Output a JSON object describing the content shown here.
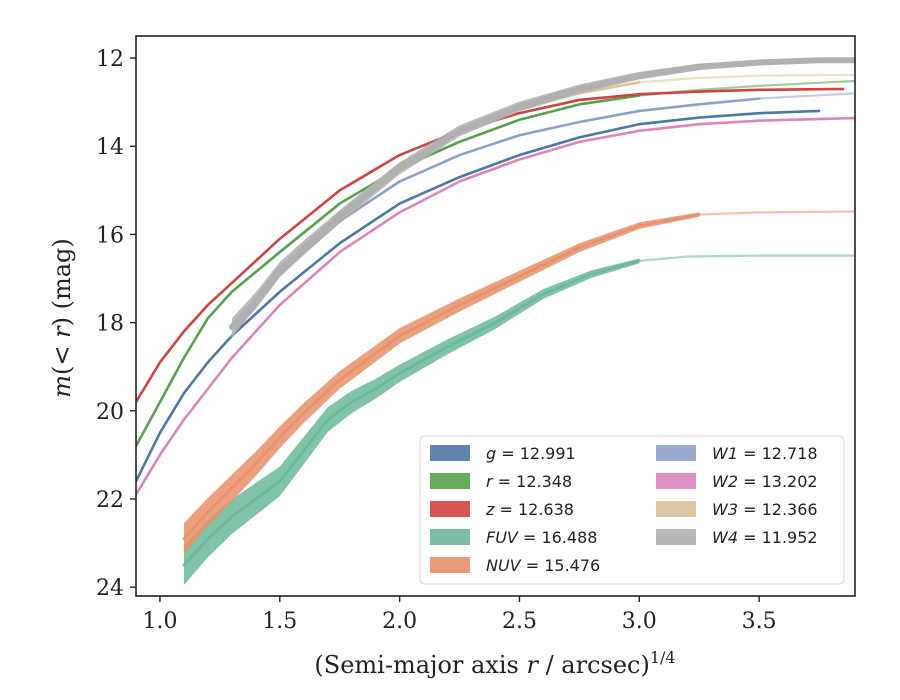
{
  "chart_data": {
    "type": "line",
    "xlabel": "(Semi-major axis r / arcsec)^{1/4}",
    "xlabel_parts": {
      "main": "(Semi-major axis ",
      "var": "r",
      "unit": " / arcsec)",
      "exp": "1/4"
    },
    "ylabel_parts": {
      "m": "m",
      "mid": "(< ",
      "r": "r",
      "end": ") (mag)"
    },
    "xlim": [
      0.9,
      3.9
    ],
    "ylim": [
      24.2,
      11.5
    ],
    "y_inverted": true,
    "xticks": [
      1.0,
      1.5,
      2.0,
      2.5,
      3.0,
      3.5
    ],
    "xtick_labels": [
      "1.0",
      "1.5",
      "2.0",
      "2.5",
      "3.0",
      "3.5"
    ],
    "yticks": [
      12,
      14,
      16,
      18,
      20,
      22,
      24
    ],
    "ytick_labels": [
      "12",
      "14",
      "16",
      "18",
      "20",
      "22",
      "24"
    ],
    "grid": false,
    "legend_position": "lower-right",
    "series": [
      {
        "name": "g",
        "label_value": "= 12.991",
        "color": "#4c78a8",
        "x": [
          0.9,
          1.0,
          1.1,
          1.2,
          1.3,
          1.5,
          1.75,
          2.0,
          2.25,
          2.5,
          2.75,
          3.0,
          3.25,
          3.5,
          3.75
        ],
        "y": [
          21.6,
          20.5,
          19.6,
          18.9,
          18.3,
          17.3,
          16.2,
          15.3,
          14.7,
          14.2,
          13.8,
          13.5,
          13.35,
          13.25,
          13.2
        ],
        "band": 0.06,
        "faint_from": null
      },
      {
        "name": "r",
        "label_value": "= 12.348",
        "color": "#55a24a",
        "x": [
          0.9,
          1.0,
          1.1,
          1.2,
          1.3,
          1.5,
          1.75,
          2.0,
          2.25,
          2.5,
          2.75,
          3.0,
          3.25,
          3.5,
          3.9
        ],
        "y": [
          20.8,
          19.8,
          18.8,
          17.9,
          17.3,
          16.4,
          15.3,
          14.5,
          13.9,
          13.4,
          13.05,
          12.85,
          12.72,
          12.63,
          12.52
        ],
        "band": 0.06,
        "faint_from": 3.0
      },
      {
        "name": "z",
        "label_value": "= 12.638",
        "color": "#d0443f",
        "x": [
          0.9,
          1.0,
          1.1,
          1.2,
          1.3,
          1.5,
          1.75,
          2.0,
          2.25,
          2.5,
          2.75,
          3.0,
          3.25,
          3.5,
          3.85
        ],
        "y": [
          19.8,
          18.9,
          18.2,
          17.6,
          17.1,
          16.1,
          15.0,
          14.2,
          13.65,
          13.25,
          12.95,
          12.82,
          12.76,
          12.72,
          12.7
        ],
        "band": 0.08,
        "faint_from": null
      },
      {
        "name": "FUV",
        "label_value": "= 16.488",
        "color": "#6bb89a",
        "x": [
          1.1,
          1.2,
          1.3,
          1.4,
          1.5,
          1.6,
          1.7,
          1.8,
          1.9,
          2.0,
          2.2,
          2.4,
          2.6,
          2.8,
          3.0,
          3.2,
          3.5,
          3.9
        ],
        "y": [
          23.5,
          22.9,
          22.4,
          22.0,
          21.6,
          20.9,
          20.2,
          19.8,
          19.5,
          19.15,
          18.55,
          18.0,
          17.35,
          16.9,
          16.6,
          16.5,
          16.48,
          16.48
        ],
        "band": 0.45,
        "faint_from": 3.0
      },
      {
        "name": "NUV",
        "label_value": "= 15.476",
        "color": "#e8916a",
        "x": [
          1.1,
          1.2,
          1.3,
          1.4,
          1.5,
          1.6,
          1.75,
          2.0,
          2.25,
          2.5,
          2.75,
          3.0,
          3.25,
          3.5,
          3.9
        ],
        "y": [
          22.9,
          22.3,
          21.75,
          21.2,
          20.6,
          20.05,
          19.3,
          18.3,
          17.6,
          16.95,
          16.3,
          15.8,
          15.55,
          15.5,
          15.48
        ],
        "band": 0.35,
        "faint_from": 3.05
      },
      {
        "name": "W1",
        "label_value": "= 12.718",
        "color": "#8fa0c8",
        "x": [
          1.3,
          1.5,
          1.75,
          2.0,
          2.25,
          2.5,
          2.75,
          3.0,
          3.25,
          3.5,
          3.9
        ],
        "y": [
          18.3,
          16.9,
          15.7,
          14.8,
          14.2,
          13.75,
          13.45,
          13.2,
          13.05,
          12.92,
          12.8
        ],
        "band": 0.07,
        "faint_from": 3.5
      },
      {
        "name": "W2",
        "label_value": "= 13.202",
        "color": "#dc85bd",
        "x": [
          0.9,
          1.0,
          1.1,
          1.2,
          1.3,
          1.5,
          1.75,
          2.0,
          2.25,
          2.5,
          2.75,
          3.0,
          3.25,
          3.5,
          3.9
        ],
        "y": [
          21.9,
          21.0,
          20.2,
          19.5,
          18.8,
          17.6,
          16.4,
          15.5,
          14.8,
          14.3,
          13.9,
          13.65,
          13.5,
          13.42,
          13.36
        ],
        "band": 0.08,
        "faint_from": null
      },
      {
        "name": "W3",
        "label_value": "= 12.366",
        "color": "#dcc39a",
        "x": [
          1.3,
          1.5,
          1.75,
          2.0,
          2.25,
          2.5,
          2.75,
          3.0,
          3.25,
          3.5,
          3.9
        ],
        "y": [
          18.1,
          16.8,
          15.5,
          14.4,
          13.7,
          13.15,
          12.8,
          12.55,
          12.45,
          12.4,
          12.38
        ],
        "band": 0.07,
        "faint_from": 3.0
      },
      {
        "name": "W4",
        "label_value": "= 11.952",
        "color": "#b0b0b0",
        "x": [
          1.3,
          1.4,
          1.5,
          1.6,
          1.75,
          2.0,
          2.25,
          2.5,
          2.75,
          3.0,
          3.25,
          3.5,
          3.75,
          3.9
        ],
        "y": [
          18.1,
          17.5,
          16.8,
          16.3,
          15.6,
          14.5,
          13.65,
          13.1,
          12.7,
          12.4,
          12.2,
          12.1,
          12.05,
          12.05
        ],
        "band": 0.2,
        "faint_from": null
      }
    ]
  },
  "legend": {
    "col1": [
      "g",
      "r",
      "z",
      "FUV",
      "NUV"
    ],
    "col2": [
      "W1",
      "W2",
      "W3",
      "W4"
    ]
  }
}
